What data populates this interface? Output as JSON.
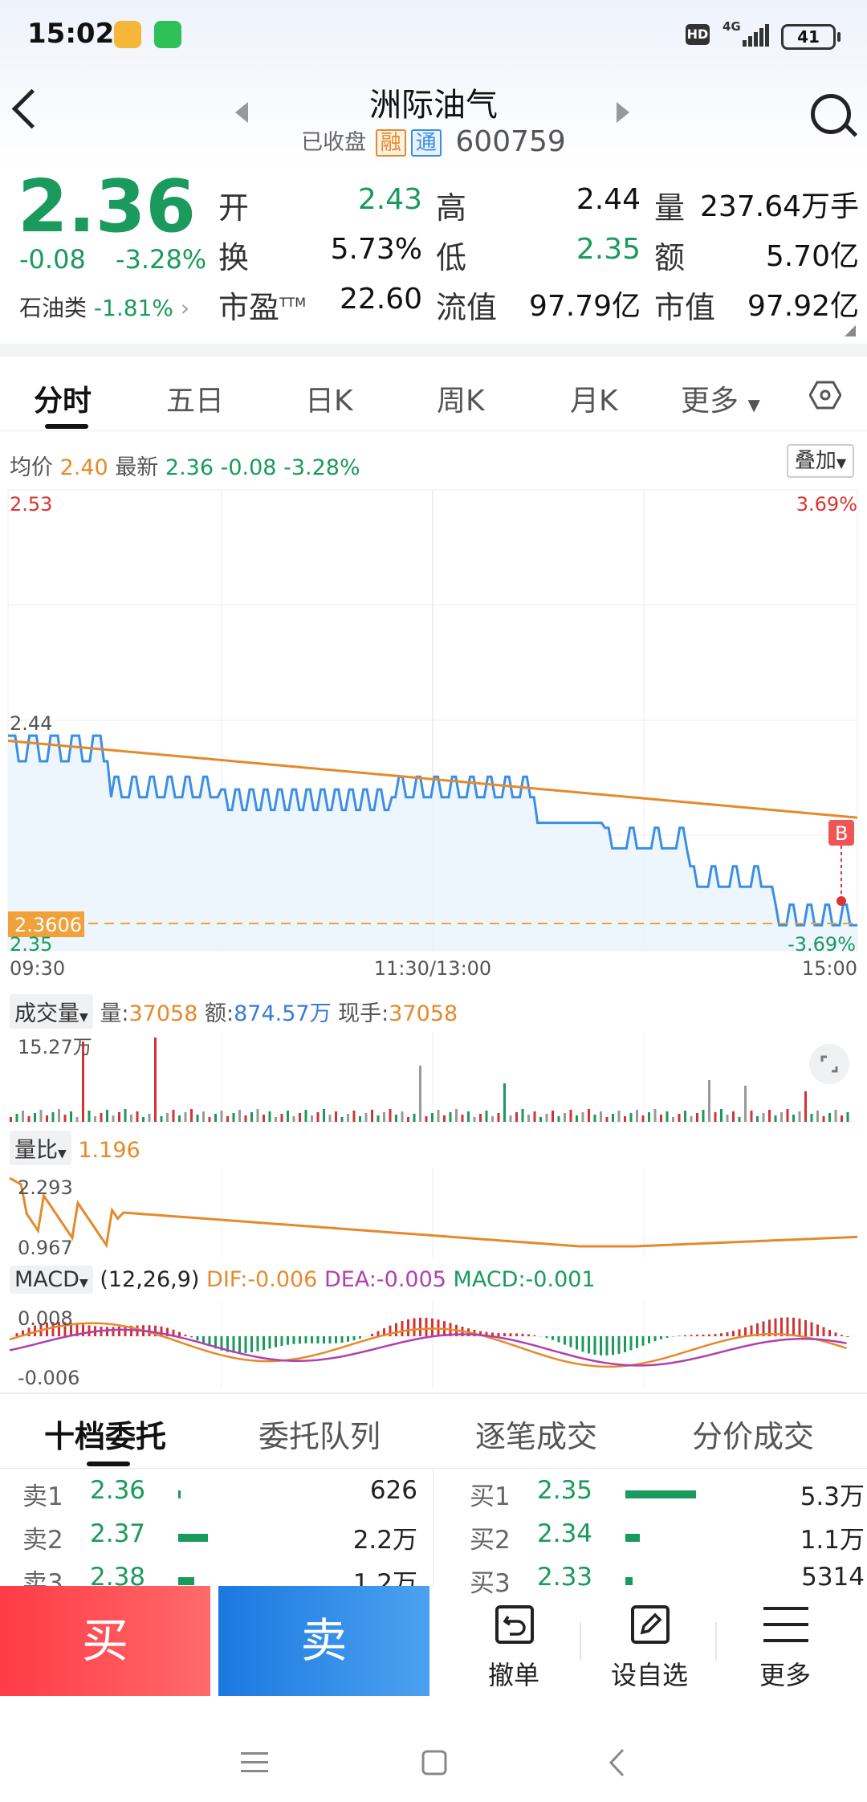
{
  "status_bar": {
    "time": "15:02",
    "hd": "HD",
    "network": "4G",
    "battery": "41"
  },
  "header": {
    "title": "洲际油气",
    "status": "已收盘",
    "tag_rong": "融",
    "tag_tong": "通",
    "code": "600759"
  },
  "quote": {
    "price": "2.36",
    "change": "-0.08",
    "change_pct": "-3.28%",
    "sector_name": "石油类",
    "sector_pct": "-1.81%",
    "open_label": "开",
    "open": "2.43",
    "high_label": "高",
    "high": "2.44",
    "volume_label": "量",
    "volume": "237.64万手",
    "turnover_label": "换",
    "turnover": "5.73%",
    "low_label": "低",
    "low": "2.35",
    "amount_label": "额",
    "amount": "5.70亿",
    "pe_label": "市盈",
    "pe_sup": "TTM",
    "pe": "22.60",
    "float_cap_label": "流值",
    "float_cap": "97.79亿",
    "mkt_cap_label": "市值",
    "mkt_cap": "97.92亿"
  },
  "tabs": [
    "分时",
    "五日",
    "日K",
    "周K",
    "月K",
    "更多"
  ],
  "intraday": {
    "avg_label": "均价",
    "avg": "2.40",
    "latest_label": "最新",
    "latest": "2.36",
    "latest_chg": "-0.08",
    "latest_pct": "-3.28%",
    "overlay_btn": "叠加",
    "y_top": "2.53",
    "y_top_pct": "3.69%",
    "y_mid": "2.44",
    "y_bottom": "2.35",
    "y_bottom_pct": "-3.69%",
    "cursor_price": "2.3606",
    "time_start": "09:30",
    "time_mid": "11:30/13:00",
    "time_end": "15:00",
    "b_marker": "B"
  },
  "volume": {
    "label": "成交量",
    "vol_label": "量:",
    "vol": "37058",
    "amt_label": "额:",
    "amt": "874.57万",
    "cur_label": "现手:",
    "cur": "37058",
    "max": "15.27万"
  },
  "vol_ratio": {
    "label": "量比",
    "value": "1.196",
    "top": "2.293",
    "bottom": "0.967"
  },
  "macd": {
    "label": "MACD",
    "params": "(12,26,9)",
    "dif": "DIF:-0.006",
    "dea": "DEA:-0.005",
    "macd": "MACD:-0.001",
    "top": "0.008",
    "bottom": "-0.006"
  },
  "bottom_tabs": [
    "十档委托",
    "委托队列",
    "逐笔成交",
    "分价成交"
  ],
  "order_book": {
    "asks": [
      {
        "label": "卖1",
        "price": "2.36",
        "vol": "626",
        "frac": 0.01
      },
      {
        "label": "卖2",
        "price": "2.37",
        "vol": "2.2万",
        "frac": 0.42
      },
      {
        "label": "卖3",
        "price": "2.38",
        "vol": "1.2万",
        "frac": 0.23
      }
    ],
    "bids": [
      {
        "label": "买1",
        "price": "2.35",
        "vol": "5.3万",
        "frac": 1.0
      },
      {
        "label": "买2",
        "price": "2.34",
        "vol": "1.1万",
        "frac": 0.21
      },
      {
        "label": "买3",
        "price": "2.33",
        "vol": "5314",
        "frac": 0.1
      }
    ]
  },
  "actions": {
    "buy": "买",
    "sell": "卖",
    "cancel": "撤单",
    "watchlist": "设自选",
    "more": "更多"
  },
  "colors": {
    "up": "#d33333",
    "down": "#1a9a5c",
    "price_line": "#3a8ee6",
    "avg_line": "#e58a2b",
    "macd_dea": "#b040b0"
  }
}
